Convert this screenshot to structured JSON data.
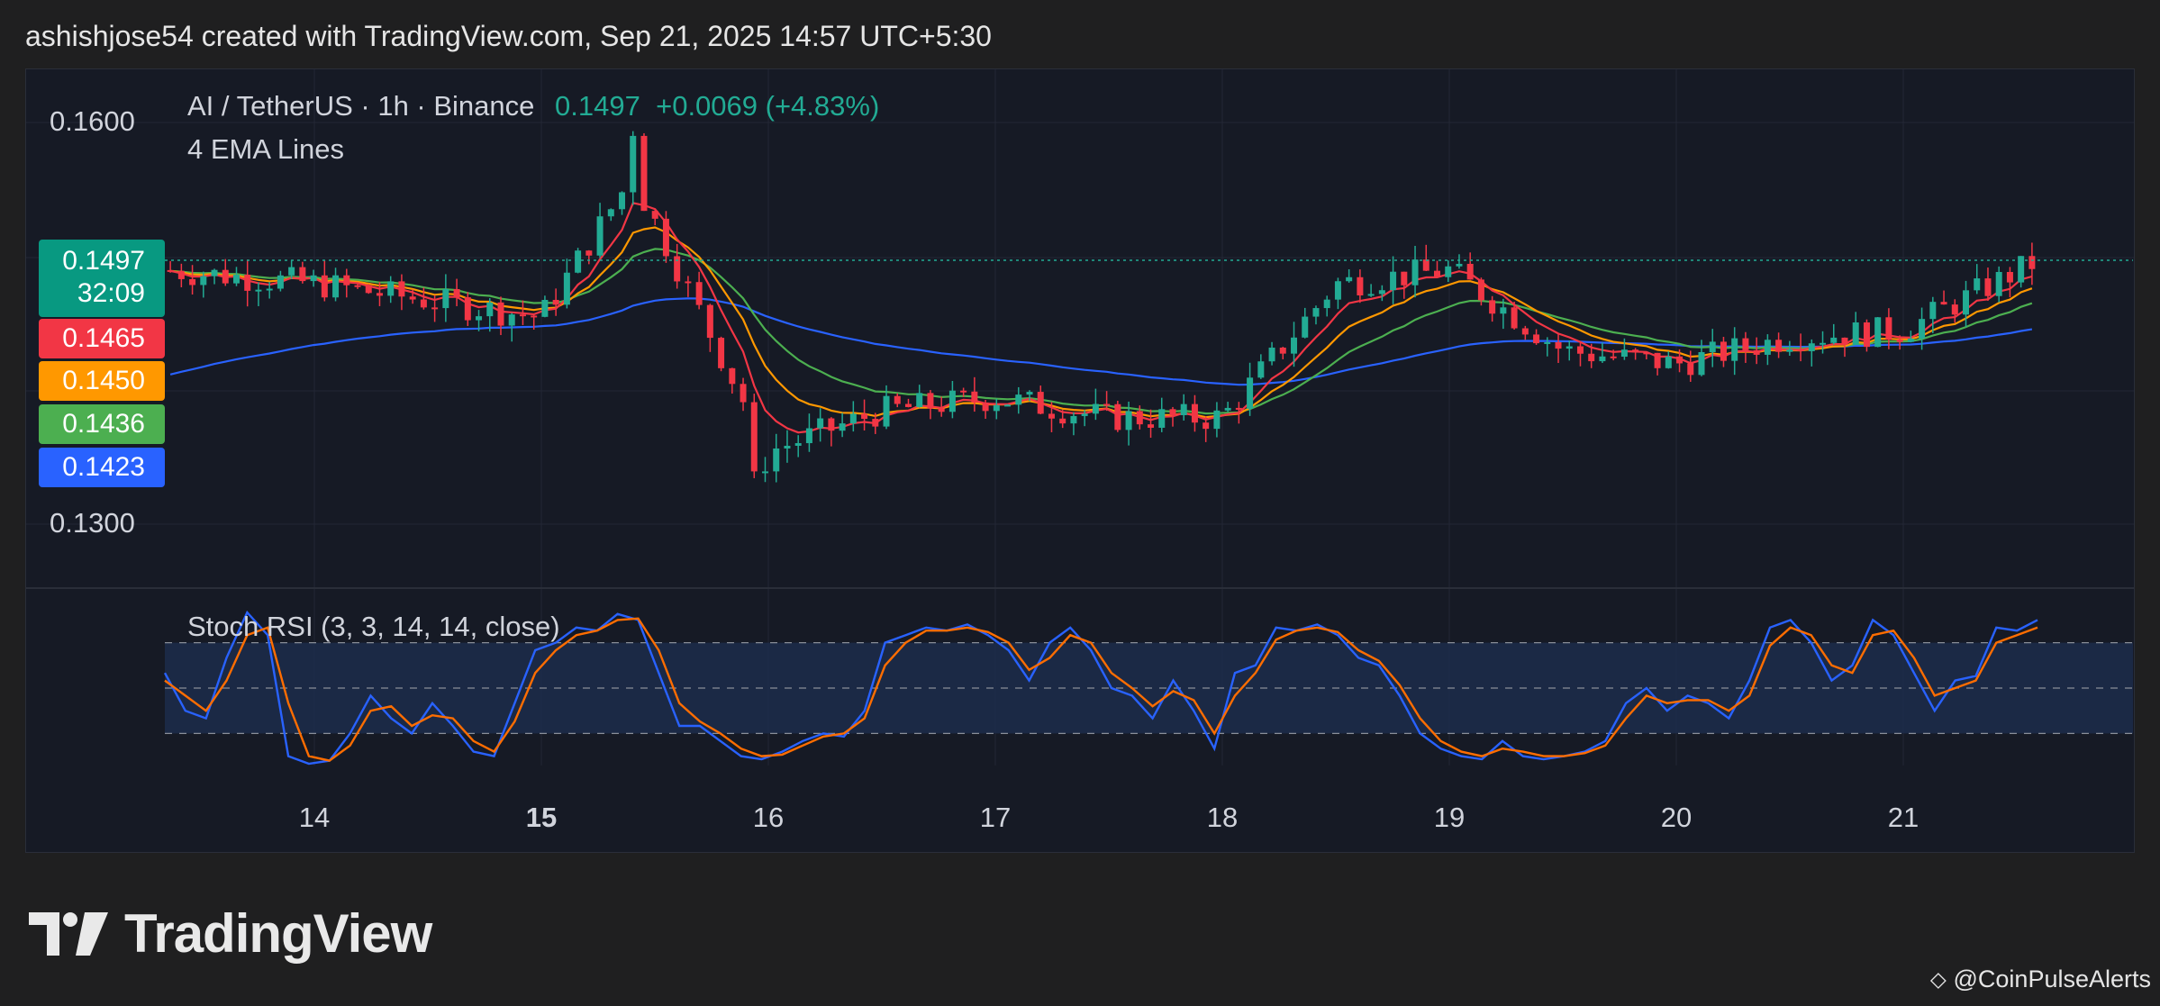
{
  "header": "ashishjose54 created with TradingView.com, Sep 21, 2025 14:57 UTC+5:30",
  "legend": {
    "pair": "AI / TetherUS · 1h · Binance",
    "price": "0.1497",
    "change": "+0.0069 (+4.83%)",
    "indicator": "4 EMA Lines",
    "oscillator": "Stoch RSI (3, 3, 14, 14, close)"
  },
  "y_axis_labels": [
    "0.1600",
    "0.1300"
  ],
  "price_tags": [
    {
      "value": "0.1497",
      "sub": "32:09",
      "color": "#089981"
    },
    {
      "value": "0.1465",
      "color": "#f23645"
    },
    {
      "value": "0.1450",
      "color": "#ff9800"
    },
    {
      "value": "0.1436",
      "color": "#4caf50"
    },
    {
      "value": "0.1423",
      "color": "#2962ff"
    }
  ],
  "x_axis_labels": [
    "14",
    "15",
    "16",
    "17",
    "18",
    "19",
    "20",
    "21"
  ],
  "brand": {
    "name": "TradingView"
  },
  "credit": "@CoinPulseAlerts",
  "colors": {
    "up": "#22ab94",
    "down": "#f23645",
    "ema_red": "#f23645",
    "ema_orange": "#ff9800",
    "ema_green": "#4caf50",
    "ema_blue": "#2962ff",
    "stoch_k": "#2962ff",
    "stoch_d": "#ff6d00",
    "band": "#1e2f50"
  },
  "chart_data": [
    {
      "type": "candlestick",
      "title": "AI / TetherUS · 1h · Binance",
      "x_labels": [
        "14",
        "15",
        "16",
        "17",
        "18",
        "19",
        "20",
        "21"
      ],
      "ylim": [
        0.128,
        0.162
      ],
      "last_price": 0.1497,
      "change": "+0.0069 (+4.83%)",
      "ema_last_values": [
        0.1465,
        0.145,
        0.1436,
        0.1423
      ],
      "series_approx_close": [
        {
          "day": "13",
          "close": 0.149
        },
        {
          "day": "14",
          "close": 0.148
        },
        {
          "day": "15",
          "close": 0.1455
        },
        {
          "day": "15.4",
          "close": 0.156
        },
        {
          "day": "16",
          "close": 0.1355
        },
        {
          "day": "16.5",
          "close": 0.1385
        },
        {
          "day": "17",
          "close": 0.1395
        },
        {
          "day": "17.5",
          "close": 0.138
        },
        {
          "day": "18",
          "close": 0.138
        },
        {
          "day": "18.5",
          "close": 0.148
        },
        {
          "day": "19",
          "close": 0.149
        },
        {
          "day": "19.5",
          "close": 0.143
        },
        {
          "day": "20",
          "close": 0.142
        },
        {
          "day": "20.5",
          "close": 0.144
        },
        {
          "day": "21",
          "close": 0.1445
        },
        {
          "day": "21.6",
          "close": 0.1497
        }
      ],
      "grid": true
    },
    {
      "type": "line",
      "title": "Stoch RSI (3, 3, 14, 14, close)",
      "ylim": [
        0,
        100
      ],
      "bands": [
        20,
        50,
        80
      ],
      "series": [
        {
          "values": [
            60,
            35,
            30,
            70,
            100,
            85,
            5,
            0,
            2,
            20,
            45,
            30,
            20,
            40,
            25,
            8,
            5,
            40,
            75,
            80,
            90,
            88,
            99,
            95,
            60,
            25,
            25,
            15,
            5,
            3,
            8,
            15,
            20,
            18,
            35,
            80,
            85,
            90,
            88,
            92,
            85,
            75,
            55,
            80,
            90,
            75,
            50,
            45,
            30,
            55,
            35,
            10,
            60,
            65,
            90,
            88,
            92,
            85,
            70,
            65,
            45,
            20,
            10,
            5,
            3,
            15,
            5,
            3,
            5,
            8,
            15,
            40,
            50,
            35,
            45,
            40,
            30,
            55,
            90,
            95,
            80,
            55,
            65,
            95,
            85,
            60,
            35,
            55,
            58,
            90,
            88,
            95
          ]
        },
        {
          "values": [
            55,
            45,
            35,
            55,
            85,
            90,
            40,
            5,
            2,
            12,
            35,
            38,
            25,
            32,
            30,
            15,
            8,
            28,
            60,
            75,
            85,
            88,
            95,
            96,
            75,
            40,
            28,
            20,
            10,
            5,
            6,
            12,
            18,
            20,
            30,
            65,
            80,
            88,
            88,
            90,
            87,
            80,
            62,
            70,
            85,
            80,
            60,
            50,
            38,
            48,
            42,
            20,
            45,
            60,
            82,
            88,
            90,
            87,
            75,
            68,
            52,
            30,
            15,
            8,
            5,
            10,
            8,
            5,
            5,
            7,
            12,
            30,
            45,
            40,
            42,
            42,
            35,
            45,
            78,
            90,
            85,
            65,
            60,
            85,
            88,
            70,
            45,
            50,
            55,
            80,
            85,
            90
          ]
        }
      ]
    }
  ]
}
